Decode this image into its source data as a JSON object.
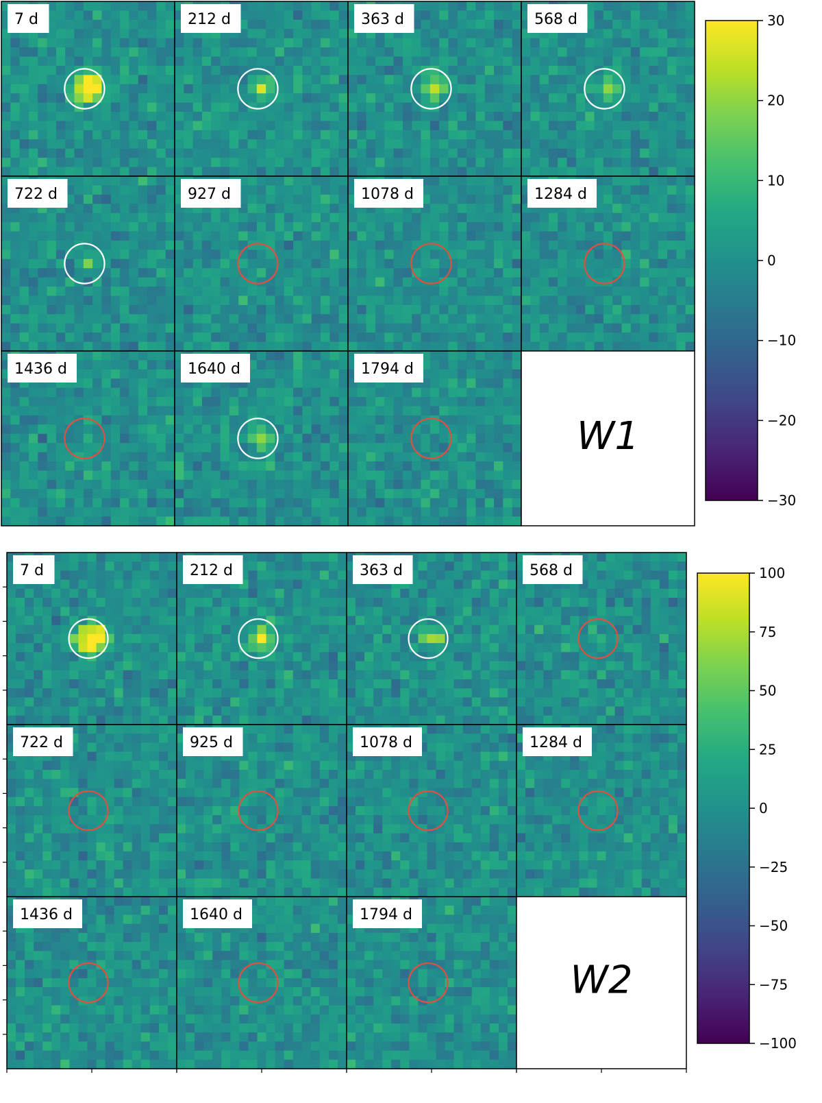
{
  "chart_data": [
    {
      "type": "heatmap",
      "band": "W1",
      "colormap": "viridis",
      "colorbar": {
        "range": [
          -30,
          30
        ],
        "ticks": [
          "30",
          "20",
          "10",
          "0",
          "−10",
          "−20",
          "−30"
        ]
      },
      "panels": [
        {
          "label": "7 d",
          "aperture": "white",
          "residual": "strong positive source"
        },
        {
          "label": "212 d",
          "aperture": "white",
          "residual": "positive"
        },
        {
          "label": "363 d",
          "aperture": "white",
          "residual": "positive"
        },
        {
          "label": "568 d",
          "aperture": "white",
          "residual": "positive"
        },
        {
          "label": "722 d",
          "aperture": "white",
          "residual": "weak positive"
        },
        {
          "label": "927 d",
          "aperture": "red",
          "residual": "none"
        },
        {
          "label": "1078 d",
          "aperture": "red",
          "residual": "none"
        },
        {
          "label": "1284 d",
          "aperture": "red",
          "residual": "none"
        },
        {
          "label": "1436 d",
          "aperture": "red",
          "residual": "none"
        },
        {
          "label": "1640 d",
          "aperture": "white",
          "residual": "positive"
        },
        {
          "label": "1794 d",
          "aperture": "red",
          "residual": "none"
        }
      ]
    },
    {
      "type": "heatmap",
      "band": "W2",
      "colormap": "viridis",
      "colorbar": {
        "range": [
          -100,
          100
        ],
        "ticks": [
          "100",
          "75",
          "50",
          "25",
          "0",
          "−25",
          "−50",
          "−75",
          "−100"
        ]
      },
      "panels": [
        {
          "label": "7 d",
          "aperture": "white",
          "residual": "strong positive source"
        },
        {
          "label": "212 d",
          "aperture": "white",
          "residual": "positive"
        },
        {
          "label": "363 d",
          "aperture": "white",
          "residual": "positive"
        },
        {
          "label": "568 d",
          "aperture": "red",
          "residual": "none"
        },
        {
          "label": "722 d",
          "aperture": "red",
          "residual": "none"
        },
        {
          "label": "925 d",
          "aperture": "red",
          "residual": "none"
        },
        {
          "label": "1078 d",
          "aperture": "red",
          "residual": "none"
        },
        {
          "label": "1284 d",
          "aperture": "red",
          "residual": "none"
        },
        {
          "label": "1436 d",
          "aperture": "red",
          "residual": "none"
        },
        {
          "label": "1640 d",
          "aperture": "red",
          "residual": "none"
        },
        {
          "label": "1794 d",
          "aperture": "red",
          "residual": "none"
        }
      ]
    }
  ],
  "colors": {
    "white_circle": "#ffffff",
    "red_circle": "#e05040"
  }
}
